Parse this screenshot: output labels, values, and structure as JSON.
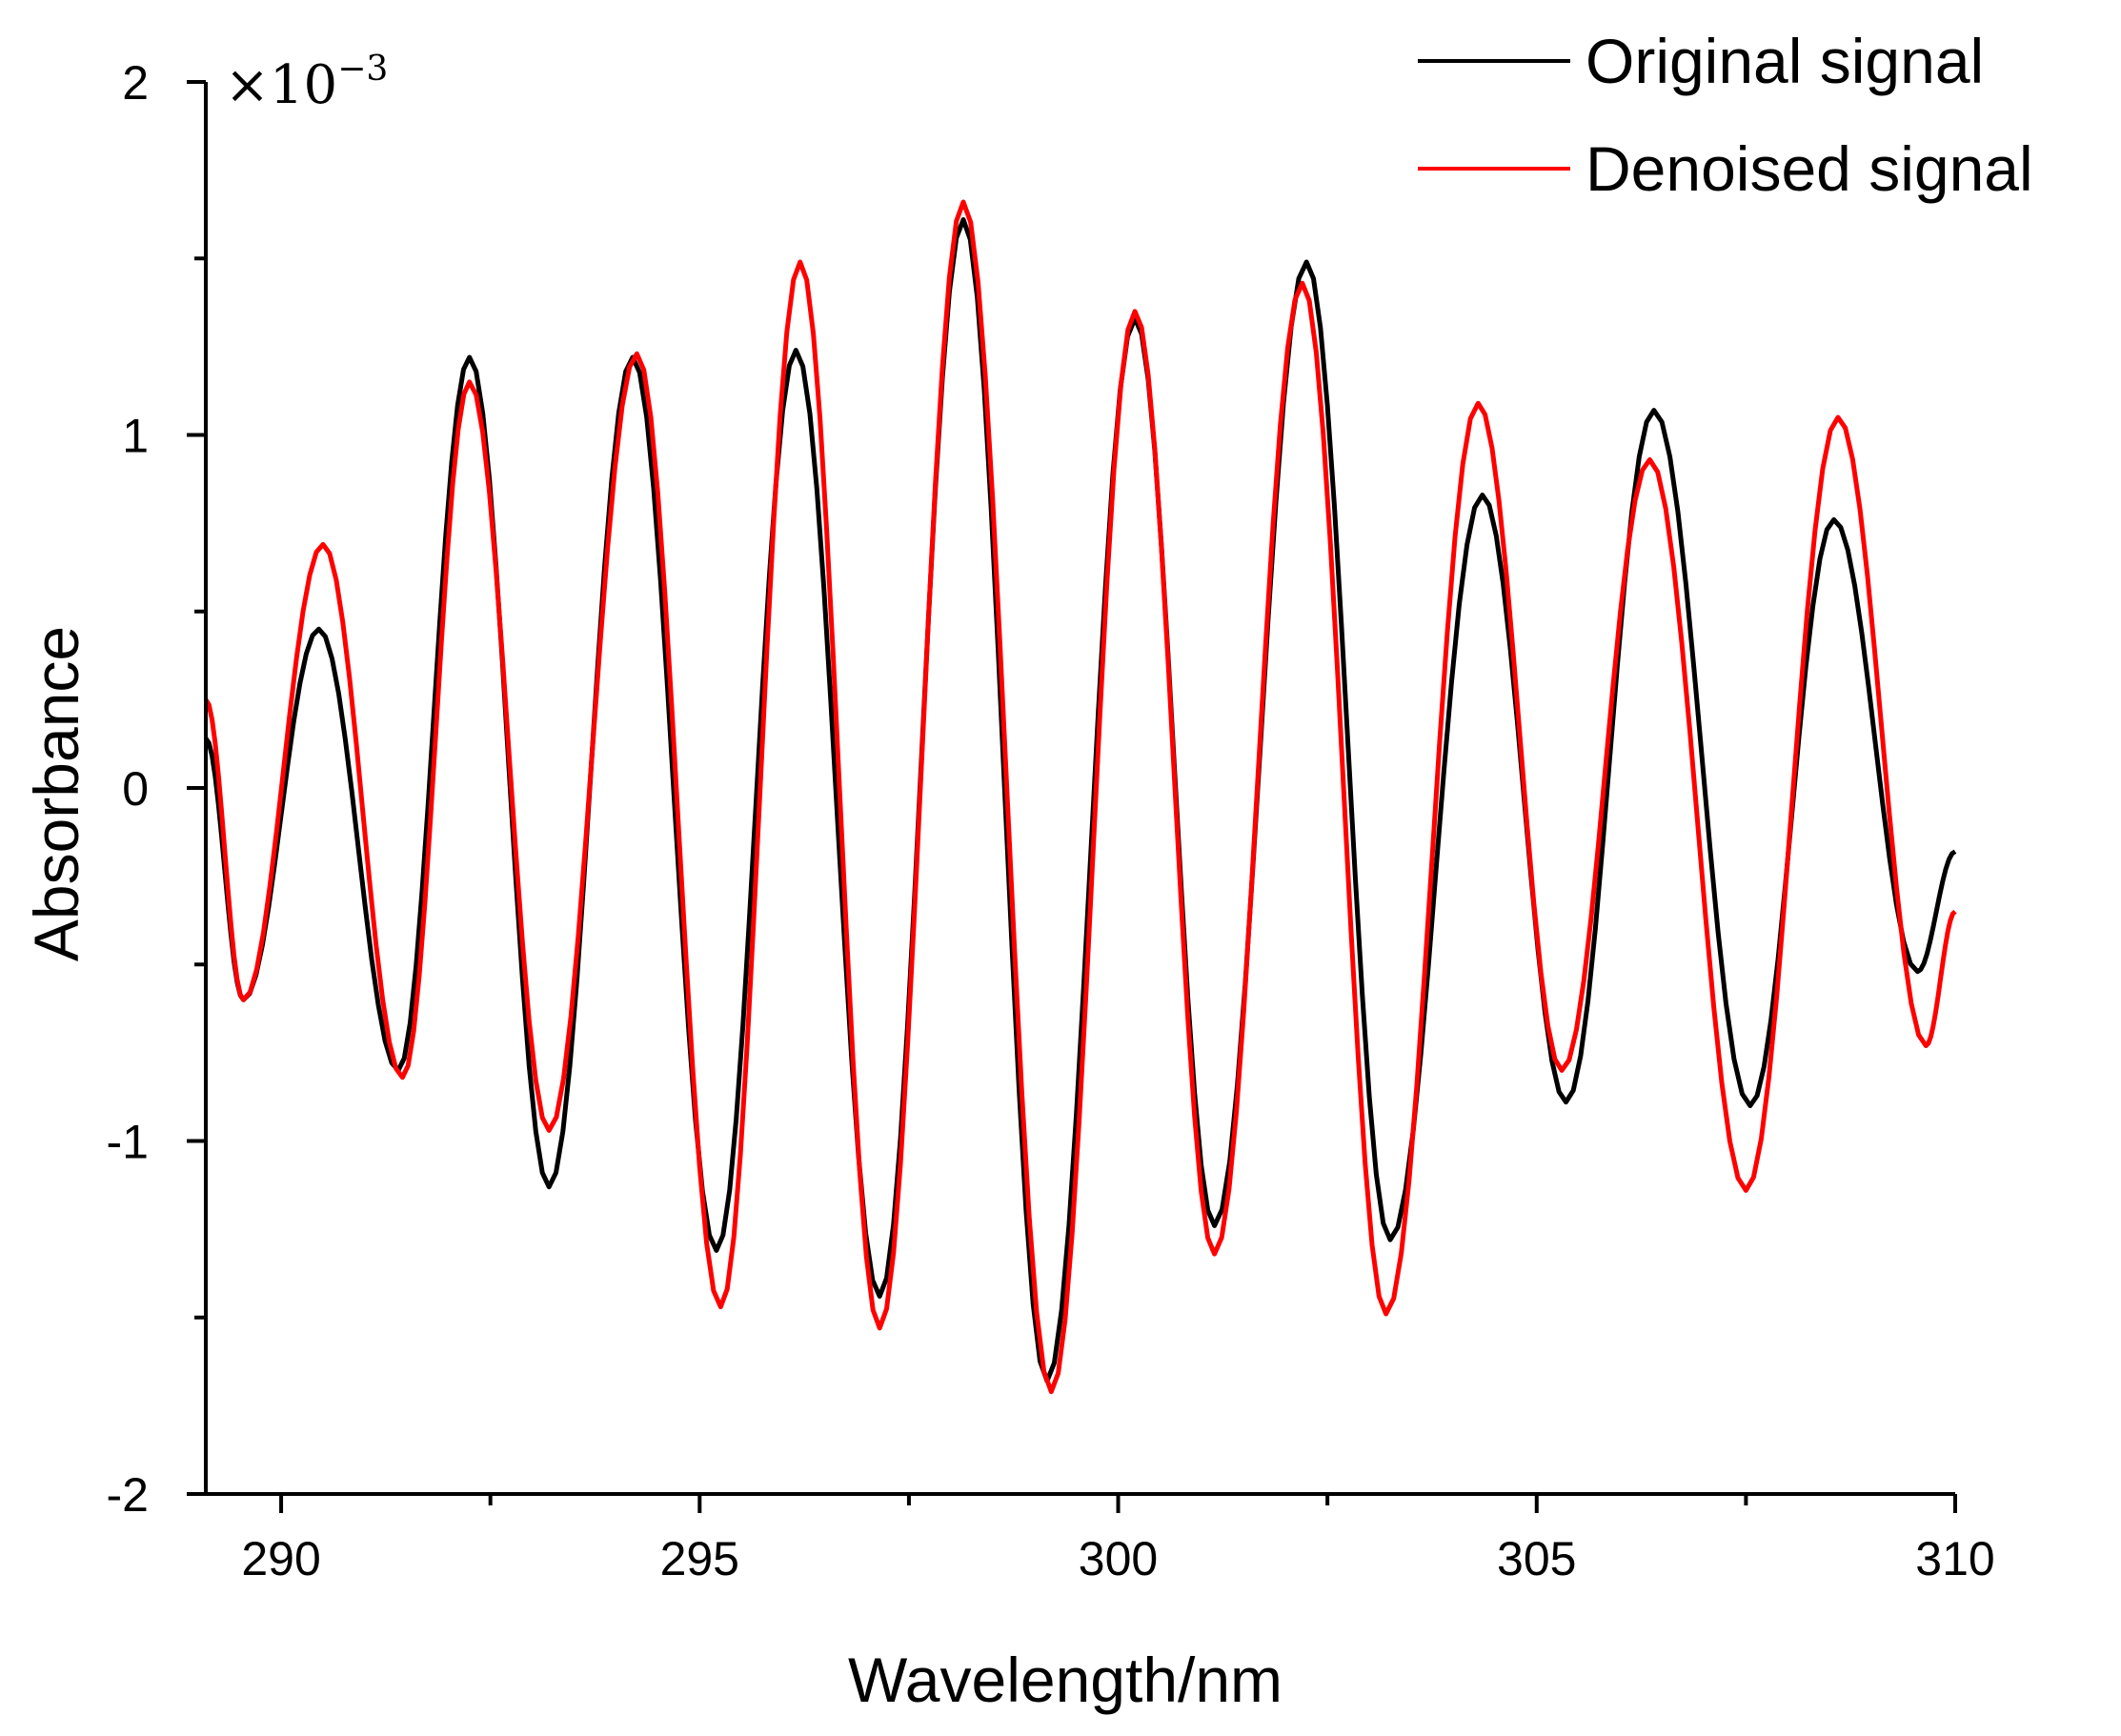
{
  "chart_data": {
    "type": "line",
    "xlabel": "Wavelength/nm",
    "ylabel": "Absorbance",
    "xlim": [
      289.1,
      310
    ],
    "ylim": [
      -2,
      2
    ],
    "x_ticks": [
      290,
      295,
      300,
      305,
      310
    ],
    "x_minor_ticks": [
      292.5,
      297.5,
      302.5,
      307.5
    ],
    "y_ticks": [
      2,
      1,
      0,
      -1,
      -2
    ],
    "y_minor_ticks": [
      1.5,
      0.5,
      -0.5,
      -1.5
    ],
    "y_multiplier": {
      "base": "×10",
      "exponent": "−3"
    },
    "legend_position": "top-right",
    "series": [
      {
        "name": "Original signal",
        "color": "#000000",
        "points": [
          [
            289.1,
            0.14
          ],
          [
            289.55,
            -0.6
          ],
          [
            290.45,
            0.45
          ],
          [
            291.4,
            -0.8
          ],
          [
            292.25,
            1.22
          ],
          [
            293.2,
            -1.13
          ],
          [
            294.2,
            1.22
          ],
          [
            295.2,
            -1.31
          ],
          [
            296.15,
            1.24
          ],
          [
            297.15,
            -1.44
          ],
          [
            298.15,
            1.61
          ],
          [
            299.15,
            -1.68
          ],
          [
            300.2,
            1.33
          ],
          [
            301.15,
            -1.24
          ],
          [
            302.25,
            1.49
          ],
          [
            303.25,
            -1.28
          ],
          [
            304.35,
            0.83
          ],
          [
            305.35,
            -0.89
          ],
          [
            306.4,
            1.07
          ],
          [
            307.55,
            -0.9
          ],
          [
            308.55,
            0.76
          ],
          [
            309.55,
            -0.52
          ],
          [
            310.0,
            -0.18
          ]
        ]
      },
      {
        "name": "Denoised signal",
        "color": "#ff0000",
        "points": [
          [
            289.1,
            0.25
          ],
          [
            289.55,
            -0.6
          ],
          [
            290.5,
            0.69
          ],
          [
            291.45,
            -0.82
          ],
          [
            292.25,
            1.15
          ],
          [
            293.2,
            -0.97
          ],
          [
            294.25,
            1.23
          ],
          [
            295.25,
            -1.47
          ],
          [
            296.2,
            1.49
          ],
          [
            297.15,
            -1.53
          ],
          [
            298.15,
            1.66
          ],
          [
            299.2,
            -1.71
          ],
          [
            300.2,
            1.35
          ],
          [
            301.15,
            -1.32
          ],
          [
            302.2,
            1.43
          ],
          [
            303.2,
            -1.49
          ],
          [
            304.3,
            1.09
          ],
          [
            305.3,
            -0.8
          ],
          [
            306.35,
            0.93
          ],
          [
            307.5,
            -1.14
          ],
          [
            308.6,
            1.05
          ],
          [
            309.65,
            -0.73
          ],
          [
            310.0,
            -0.35
          ]
        ]
      }
    ]
  }
}
